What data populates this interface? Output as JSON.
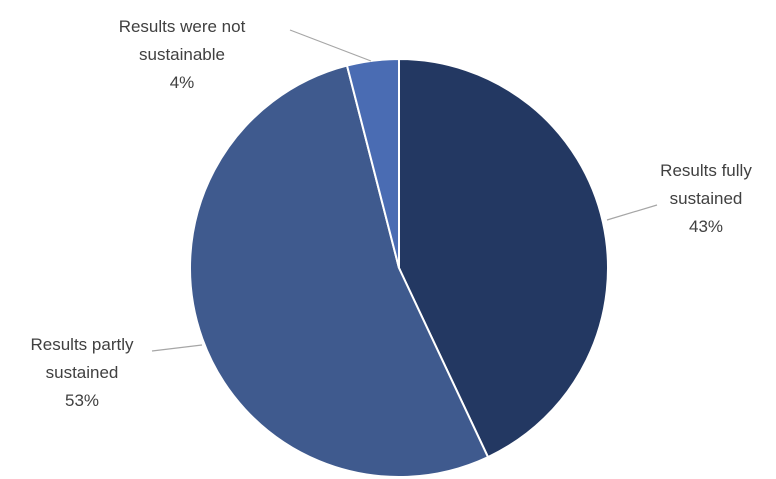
{
  "chart_data": {
    "type": "pie",
    "start_angle_deg": 0,
    "direction": "clockwise",
    "slices": [
      {
        "label_lines": [
          "Results fully",
          "sustained"
        ],
        "percent_label": "43%",
        "value": 43,
        "color": "#233862"
      },
      {
        "label_lines": [
          "Results partly",
          "sustained"
        ],
        "percent_label": "53%",
        "value": 53,
        "color": "#3f5a8e"
      },
      {
        "label_lines": [
          "Results were not",
          "sustainable"
        ],
        "percent_label": "4%",
        "value": 4,
        "color": "#4a6cb3"
      }
    ]
  }
}
